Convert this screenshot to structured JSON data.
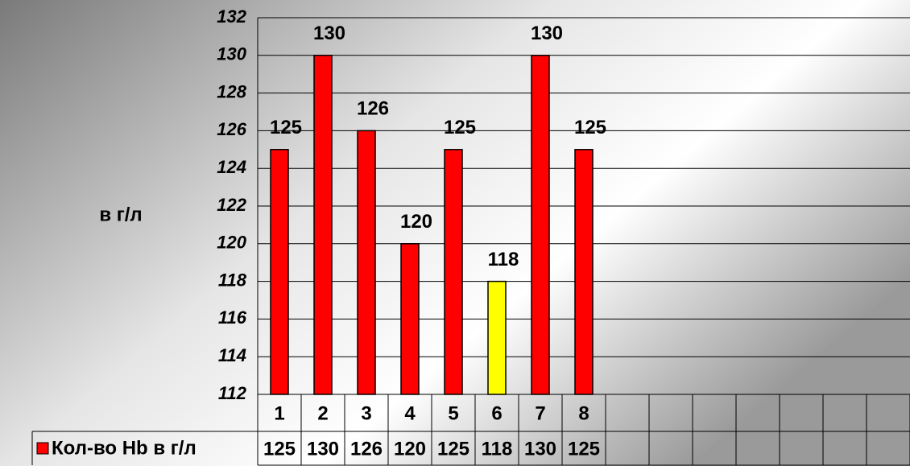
{
  "chart_data": {
    "type": "bar",
    "y_axis_label": "в г/л",
    "categories": [
      1,
      2,
      3,
      4,
      5,
      6,
      7,
      8,
      null,
      null,
      null,
      null,
      null,
      null,
      null
    ],
    "series": [
      {
        "name": "Кол-во Hb в г/л",
        "color": "#ff0000",
        "colors": [
          "#ff0000",
          "#ff0000",
          "#ff0000",
          "#ff0000",
          "#ff0000",
          "#ffff00",
          "#ff0000",
          "#ff0000",
          null,
          null,
          null,
          null,
          null,
          null,
          null
        ],
        "values": [
          125,
          130,
          126,
          120,
          125,
          118,
          130,
          125,
          null,
          null,
          null,
          null,
          null,
          null,
          null
        ]
      }
    ],
    "ylim": [
      112,
      132
    ],
    "yticks": [
      112,
      114,
      116,
      118,
      120,
      122,
      124,
      126,
      128,
      130,
      132
    ],
    "grid": true,
    "data_table": true
  }
}
